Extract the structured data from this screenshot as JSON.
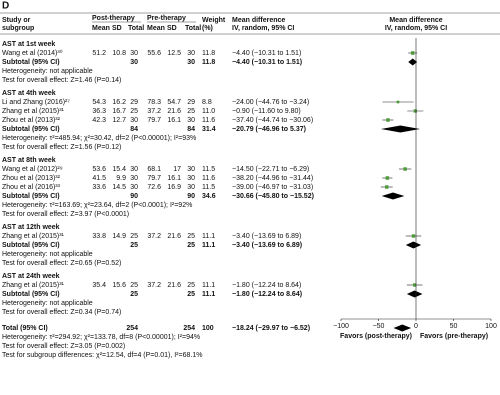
{
  "chart_data": {
    "type": "forest",
    "panel": "D",
    "header": {
      "study": [
        "Study or",
        "subgroup"
      ],
      "post": "Post-therapy",
      "pre": "Pre-therapy",
      "cols": [
        "Mean",
        "SD",
        "Total"
      ],
      "weight": [
        "Weight",
        "(%)"
      ],
      "md": [
        "Mean difference",
        "IV, random, 95% CI"
      ]
    },
    "xlim": [
      -100,
      100
    ],
    "xticks": [
      {
        "value": -100,
        "label": "−100"
      },
      {
        "value": -50,
        "label": "−50"
      },
      0,
      50,
      100
    ],
    "favors_left": "Favors (post-therapy)",
    "favors_right": "Favors (pre-therapy)",
    "square_color": "#4c9a3a",
    "groups": [
      {
        "title": "AST at 1st week",
        "studies": [
          {
            "name": "Wang et al (2014)³⁰",
            "post": [
              51.2,
              10.8,
              30
            ],
            "pre": [
              55.6,
              12.5,
              30
            ],
            "weight": 11.8,
            "md": -4.4,
            "ci_low": -10.31,
            "ci_high": 1.51,
            "md_label": "−4.40 (−10.31 to 1.51)"
          }
        ],
        "subtotal": {
          "label": "Subtotal (95% CI)",
          "post_total": 30,
          "pre_total": 30,
          "weight": 11.8,
          "md": -4.4,
          "ci_low": -10.31,
          "ci_high": 1.51,
          "md_label": "−4.40 (−10.31 to 1.51)"
        },
        "heterogeneity": "Heterogeneity: not applicable",
        "overall_effect": "Test for overall effect: Z=1.46 (P=0.14)"
      },
      {
        "title": "AST at 4th week",
        "studies": [
          {
            "name": "Li and Zhang (2016)²⁷",
            "post": [
              54.3,
              16.2,
              29
            ],
            "pre": [
              78.3,
              54.7,
              29
            ],
            "weight": 8.8,
            "md": -24.0,
            "ci_low": -44.76,
            "ci_high": -3.24,
            "md_label": "−24.00 (−44.76 to −3.24)"
          },
          {
            "name": "Zhang et al (2015)³¹",
            "post": [
              36.3,
              16.7,
              25
            ],
            "pre": [
              37.2,
              21.6,
              25
            ],
            "weight": 11.0,
            "weight_label": "11.0",
            "md": -0.9,
            "ci_low": -11.6,
            "ci_high": 9.8,
            "md_label": "−0.90 (−11.60 to 9.80)"
          },
          {
            "name": "Zhou et al (2013)³²",
            "post": [
              42.3,
              12.7,
              30
            ],
            "pre": [
              79.7,
              16.1,
              30
            ],
            "weight": 11.6,
            "md": -37.4,
            "ci_low": -44.74,
            "ci_high": -30.06,
            "md_label": "−37.40 (−44.74 to −30.06)"
          }
        ],
        "subtotal": {
          "label": "Subtotal (95% CI)",
          "post_total": 84,
          "pre_total": 84,
          "weight": 31.4,
          "md": -20.79,
          "ci_low": -46.96,
          "ci_high": 5.37,
          "md_label": "−20.79 (−46.96 to 5.37)"
        },
        "heterogeneity": "Heterogeneity: τ²=485.94; χ²=30.42, df=2 (P<0.00001); I²=93%",
        "overall_effect": "Test for overall effect: Z=1.56 (P=0.12)"
      },
      {
        "title": "AST at 8th week",
        "studies": [
          {
            "name": "Wang et al (2012)²⁹",
            "post": [
              53.6,
              15.4,
              30
            ],
            "pre": [
              68.1,
              17,
              30
            ],
            "weight": 11.5,
            "md": -14.5,
            "ci_low": -22.71,
            "ci_high": -6.29,
            "md_label": "−14.50 (−22.71 to −6.29)"
          },
          {
            "name": "Zhou et al (2013)³²",
            "post": [
              41.5,
              9.9,
              30
            ],
            "pre": [
              79.7,
              16.1,
              30
            ],
            "weight": 11.6,
            "md": -38.2,
            "ci_low": -44.96,
            "ci_high": -31.44,
            "md_label": "−38.20 (−44.96 to −31.44)"
          },
          {
            "name": "Zhou et al (2016)³³",
            "post": [
              33.6,
              14.5,
              30
            ],
            "pre": [
              72.6,
              16.9,
              30
            ],
            "weight": 11.5,
            "md": -39.0,
            "ci_low": -46.97,
            "ci_high": -31.03,
            "md_label": "−39.00 (−46.97 to −31.03)"
          }
        ],
        "subtotal": {
          "label": "Subtotal (95% CI)",
          "post_total": 90,
          "pre_total": 90,
          "weight": 34.6,
          "md": -30.66,
          "ci_low": -45.8,
          "ci_high": -15.52,
          "md_label": "−30.66 (−45.80 to −15.52)"
        },
        "heterogeneity": "Heterogeneity: τ²=163.69; χ²=23.64, df=2 (P<0.0001); I²=92%",
        "overall_effect": "Test for overall effect: Z=3.97 (P<0.0001)"
      },
      {
        "title": "AST at 12th week",
        "studies": [
          {
            "name": "Zhang et al (2015)³¹",
            "post": [
              33.8,
              14.9,
              25
            ],
            "pre": [
              37.2,
              21.6,
              25
            ],
            "weight": 11.1,
            "md": -3.4,
            "ci_low": -13.69,
            "ci_high": 6.89,
            "md_label": "−3.40 (−13.69 to 6.89)"
          }
        ],
        "subtotal": {
          "label": "Subtotal (95% CI)",
          "post_total": 25,
          "pre_total": 25,
          "weight": 11.1,
          "md": -3.4,
          "ci_low": -13.69,
          "ci_high": 6.89,
          "md_label": "−3.40 (−13.69 to 6.89)"
        },
        "heterogeneity": "Heterogeneity: not applicable",
        "overall_effect": "Test for overall effect: Z=0.65 (P=0.52)"
      },
      {
        "title": "AST at 24th week",
        "studies": [
          {
            "name": "Zhang et al (2015)³¹",
            "post": [
              35.4,
              15.6,
              25
            ],
            "pre": [
              37.2,
              21.6,
              25
            ],
            "weight": 11.1,
            "md": -1.8,
            "ci_low": -12.24,
            "ci_high": 8.64,
            "md_label": "−1.80 (−12.24 to 8.64)"
          }
        ],
        "subtotal": {
          "label": "Subtotal (95% CI)",
          "post_total": 25,
          "pre_total": 25,
          "weight": 11.1,
          "md": -1.8,
          "ci_low": -12.24,
          "ci_high": 8.64,
          "md_label": "−1.80 (−12.24 to 8.64)"
        },
        "heterogeneity": "Heterogeneity: not applicable",
        "overall_effect": "Test for overall effect: Z=0.34 (P=0.74)"
      }
    ],
    "total": {
      "label": "Total (95% CI)",
      "post_total": 254,
      "pre_total": 254,
      "weight": 100,
      "md": -18.24,
      "ci_low": -29.97,
      "ci_high": -6.52,
      "md_label": "−18.24 (−29.97 to −6.52)",
      "heterogeneity": "Heterogeneity: τ²=294.92; χ²=133.78, df=8 (P<0.00001); I²=94%",
      "overall_effect": "Test for overall effect: Z=3.05 (P=0.002)",
      "subgroup_differences": "Test for subgroup differences: χ²=12.54, df=4 (P=0.01), I²=68.1%"
    }
  }
}
